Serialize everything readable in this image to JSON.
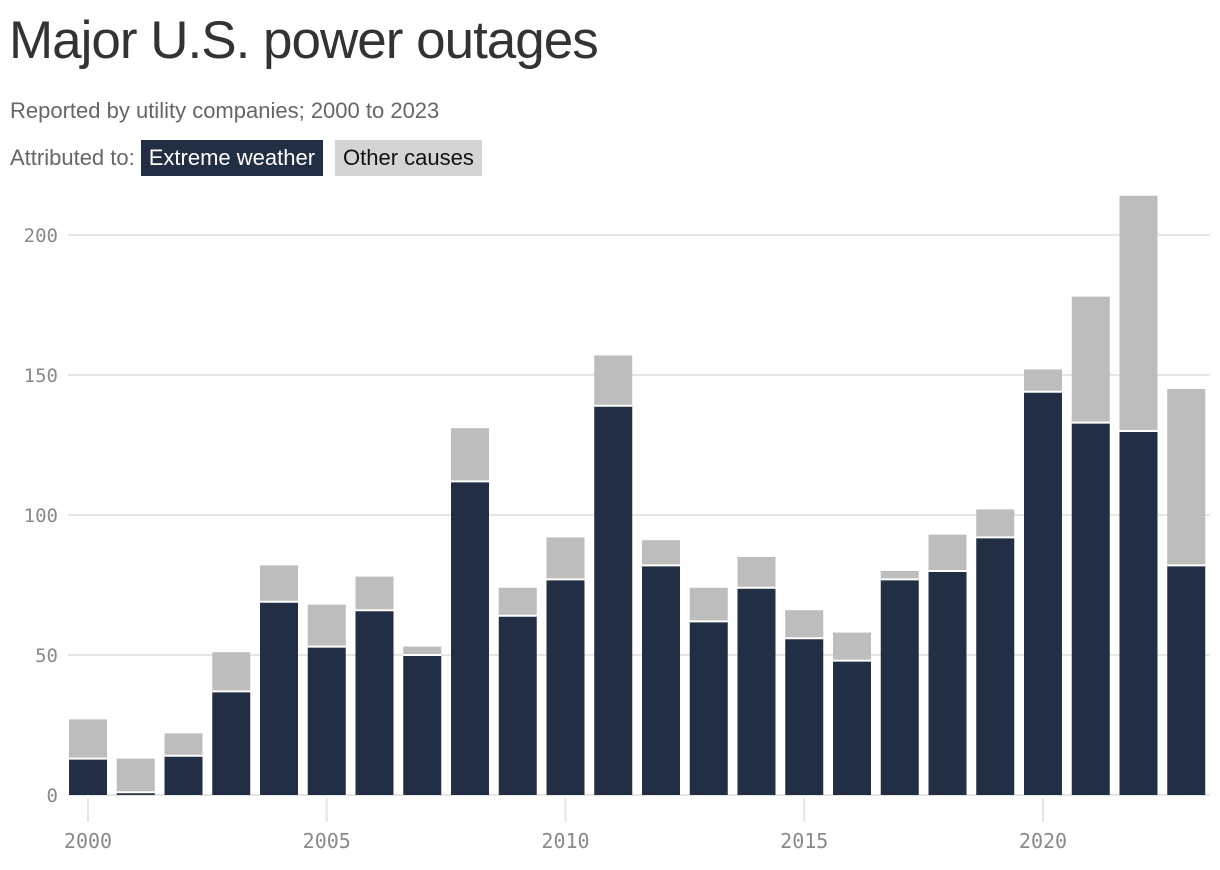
{
  "header": {
    "title": "Major U.S. power outages",
    "subtitle": "Reported by utility companies; 2000 to 2023"
  },
  "legend": {
    "label": "Attributed to:",
    "items": [
      {
        "label": "Extreme weather",
        "color": "#222e44"
      },
      {
        "label": "Other causes",
        "color": "#bcbdbc"
      }
    ]
  },
  "colors": {
    "weather": "#222e44",
    "other": "#bcbdbc",
    "legend_other_chip": "#d3d4d3",
    "gridline": "#e6e6e6",
    "axis_text": "#8a8a8a"
  },
  "chart_data": {
    "type": "bar",
    "stacked": true,
    "title": "Major U.S. power outages",
    "subtitle": "Reported by utility companies; 2000 to 2023",
    "xlabel": "",
    "ylabel": "",
    "ylim": [
      0,
      215
    ],
    "yticks": [
      0,
      50,
      100,
      150,
      200
    ],
    "xticks": [
      2000,
      2005,
      2010,
      2015,
      2020
    ],
    "grid": true,
    "legend_position": "top",
    "categories": [
      2000,
      2001,
      2002,
      2003,
      2004,
      2005,
      2006,
      2007,
      2008,
      2009,
      2010,
      2011,
      2012,
      2013,
      2014,
      2015,
      2016,
      2017,
      2018,
      2019,
      2020,
      2021,
      2022,
      2023
    ],
    "series": [
      {
        "name": "Extreme weather",
        "values": [
          13,
          1,
          14,
          37,
          69,
          53,
          66,
          50,
          112,
          64,
          77,
          139,
          82,
          62,
          74,
          56,
          48,
          77,
          80,
          92,
          144,
          133,
          130,
          82
        ]
      },
      {
        "name": "Other causes",
        "values": [
          14,
          12,
          8,
          14,
          13,
          15,
          12,
          3,
          19,
          10,
          15,
          18,
          9,
          12,
          11,
          10,
          10,
          3,
          13,
          10,
          8,
          45,
          84,
          63
        ]
      }
    ]
  }
}
